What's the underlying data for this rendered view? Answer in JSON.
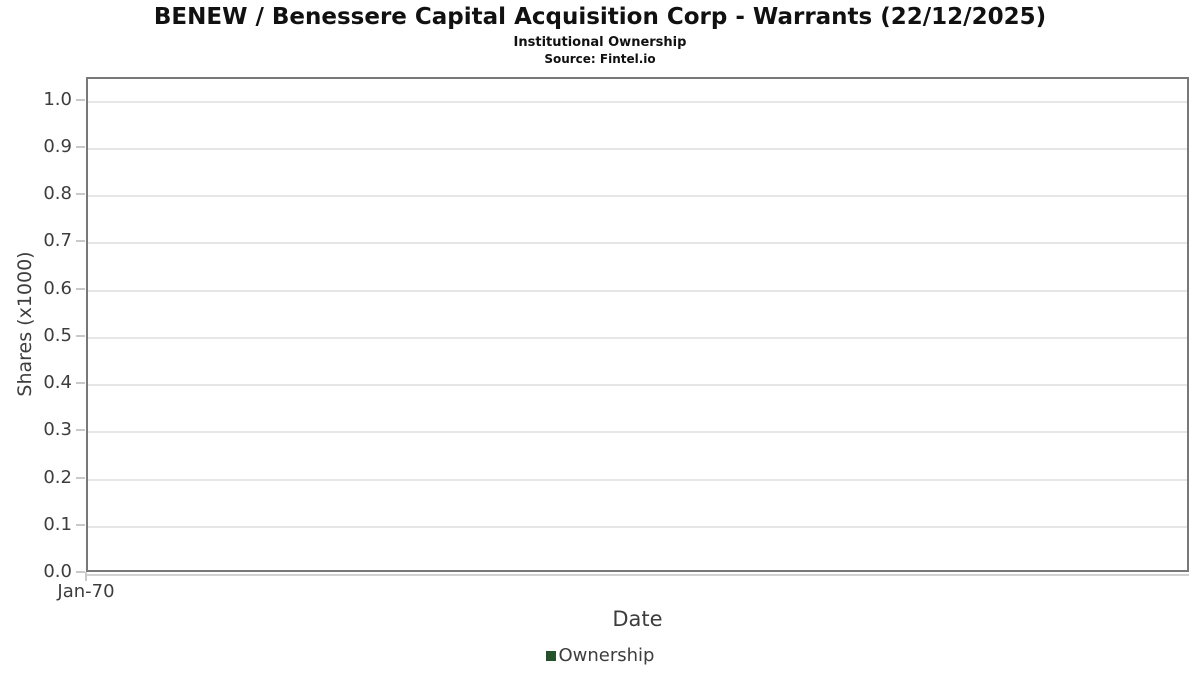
{
  "chart_data": {
    "type": "line",
    "title": "BENEW / Benessere Capital Acquisition Corp - Warrants (22/12/2025)",
    "subtitle": "Institutional Ownership",
    "source": "Source: Fintel.io",
    "xlabel": "Date",
    "ylabel": "Shares (x1000)",
    "xticks": [
      "Jan-70"
    ],
    "yticks": [
      "0.0",
      "0.1",
      "0.2",
      "0.3",
      "0.4",
      "0.5",
      "0.6",
      "0.7",
      "0.8",
      "0.9",
      "1.0"
    ],
    "ylim": [
      0,
      1.048
    ],
    "grid": "horizontal",
    "legend_position": "bottom",
    "legend": [
      {
        "label": "Ownership",
        "color": "#26522b"
      }
    ],
    "series": [
      {
        "name": "Ownership",
        "x": [],
        "values": []
      }
    ]
  },
  "colors": {
    "background": "#ffffff",
    "plot_border": "#787878",
    "gridline": "#e6e6e6",
    "tick_mark": "#c9c9c9",
    "axis_text": "#3d3d3d",
    "title_text": "#111111",
    "legend_swatch": "#26522b"
  }
}
